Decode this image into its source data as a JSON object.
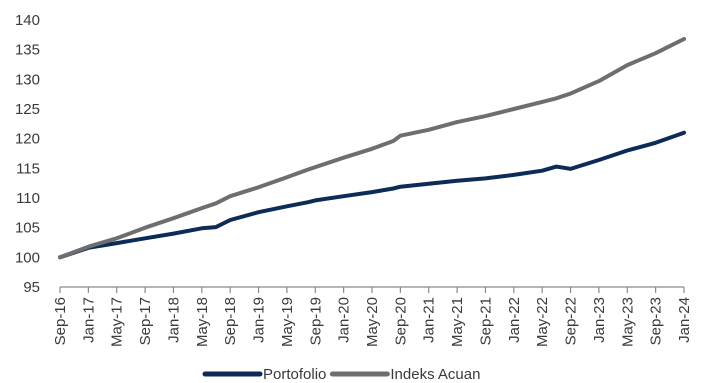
{
  "chart_data": {
    "type": "line",
    "title": "",
    "xlabel": "",
    "ylabel": "",
    "ylim": [
      95,
      140
    ],
    "yticks": [
      95,
      100,
      105,
      110,
      115,
      120,
      125,
      130,
      135,
      140
    ],
    "x_tick_labels": [
      "Sep-16",
      "Jan-17",
      "May-17",
      "Sep-17",
      "Jan-18",
      "May-18",
      "Sep-18",
      "Jan-19",
      "May-19",
      "Sep-19",
      "Jan-20",
      "May-20",
      "Sep-20",
      "Jan-21",
      "May-21",
      "Sep-21",
      "Jan-22",
      "May-22",
      "Sep-22",
      "Jan-23",
      "May-23",
      "Sep-23",
      "Jan-24"
    ],
    "grid": false,
    "legend": "bottom",
    "x": [
      "Sep-16",
      "Jan-17",
      "May-17",
      "Sep-17",
      "Jan-18",
      "May-18",
      "Jul-18",
      "Sep-18",
      "Jan-19",
      "May-19",
      "Aug-19",
      "Sep-19",
      "Jan-20",
      "May-20",
      "Aug-20",
      "Sep-20",
      "Jan-21",
      "May-21",
      "Sep-21",
      "Jan-22",
      "May-22",
      "Jul-22",
      "Aug-22",
      "Sep-22",
      "Jan-23",
      "May-23",
      "Sep-23",
      "Jan-24"
    ],
    "series": [
      {
        "name": "Portofolio",
        "color": "#0d2b57",
        "values": [
          100,
          101.6,
          102.4,
          103.2,
          104.0,
          104.9,
          105.1,
          106.3,
          107.6,
          108.6,
          109.3,
          109.6,
          110.3,
          111.0,
          111.6,
          111.9,
          112.4,
          112.9,
          113.3,
          113.9,
          114.6,
          115.3,
          115.1,
          114.9,
          116.4,
          118.0,
          119.3,
          121.0
        ]
      },
      {
        "name": "Indeks Acuan",
        "color": "#6d6e70",
        "values": [
          100,
          101.8,
          103.2,
          105.0,
          106.6,
          108.3,
          109.1,
          110.3,
          111.8,
          113.5,
          114.8,
          115.2,
          116.8,
          118.3,
          119.6,
          120.5,
          121.5,
          122.8,
          123.8,
          125.0,
          126.2,
          126.8,
          127.2,
          127.6,
          129.7,
          132.4,
          134.4,
          136.8
        ]
      }
    ]
  }
}
